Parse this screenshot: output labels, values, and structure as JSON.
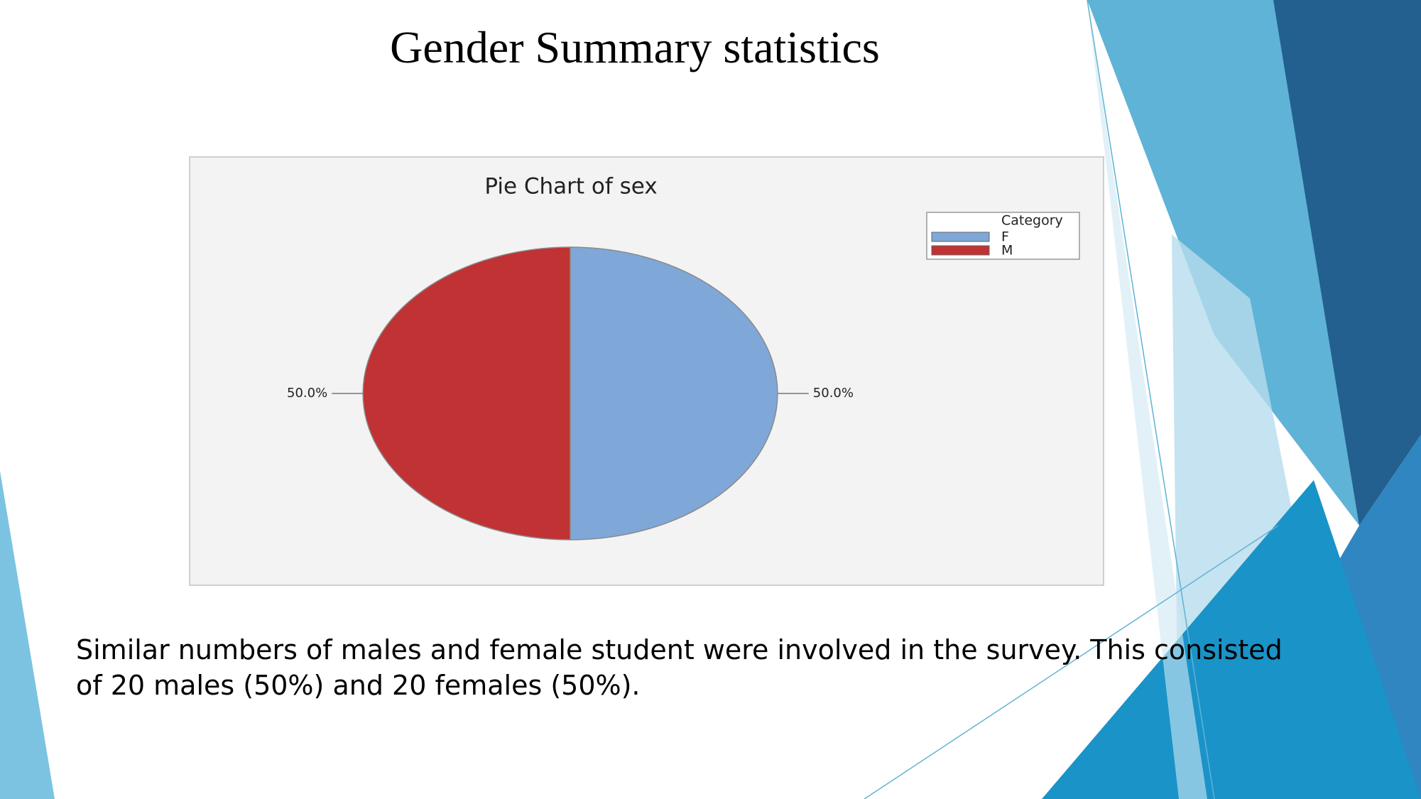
{
  "slide": {
    "title": "Gender Summary statistics",
    "body": "Similar numbers of males and female student were involved in the survey. This consisted of 20 males (50%) and 20 females (50%)."
  },
  "chart_data": {
    "type": "pie",
    "title": "Pie Chart of sex",
    "categories": [
      "F",
      "M"
    ],
    "values": [
      50,
      50
    ],
    "value_labels": [
      "50.0%",
      "50.0%"
    ],
    "colors": [
      "#7fa7d8",
      "#c03233"
    ],
    "legend_title": "Category",
    "legend": "top-right"
  }
}
